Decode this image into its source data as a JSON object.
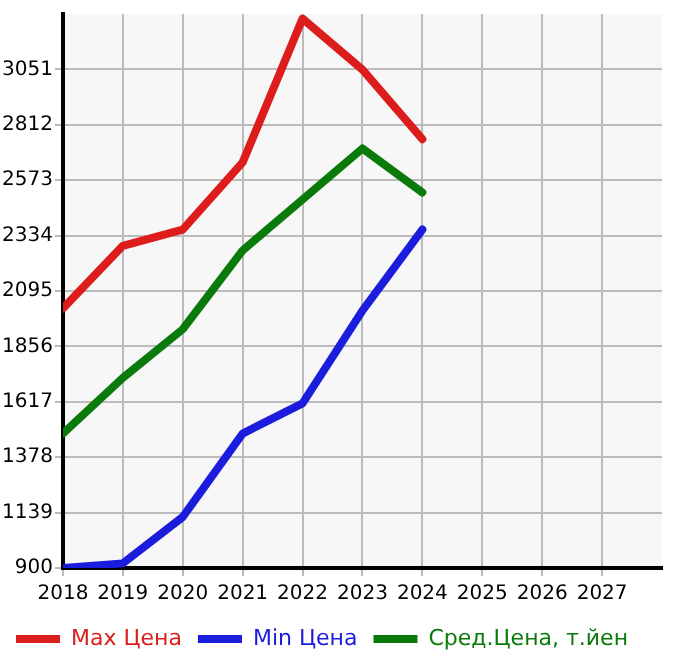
{
  "chart_data": {
    "type": "line",
    "x": [
      2018,
      2019,
      2020,
      2021,
      2022,
      2023,
      2024
    ],
    "series": [
      {
        "name": "Max Цена",
        "color": "#dd1c1c",
        "values": [
          2020,
          2290,
          2360,
          2650,
          3270,
          3050,
          2750
        ]
      },
      {
        "name": "Min Цена",
        "color": "#1c1cdd",
        "values": [
          900,
          920,
          1120,
          1480,
          1610,
          2010,
          2360
        ]
      },
      {
        "name": "Сред.Цена, т.йен",
        "color": "#0a7a0a",
        "values": [
          1480,
          1720,
          1930,
          2270,
          2490,
          2710,
          2520
        ]
      }
    ],
    "xlim": [
      2018,
      2028
    ],
    "xticks": [
      2018,
      2019,
      2020,
      2021,
      2022,
      2023,
      2024,
      2025,
      2026,
      2027
    ],
    "ylim": [
      900,
      3290
    ],
    "yticks": [
      900,
      1139,
      1378,
      1617,
      1856,
      2095,
      2334,
      2573,
      2812,
      3051
    ],
    "grid": true,
    "legend": "bottom",
    "marker": "none",
    "line_style": "solid"
  }
}
